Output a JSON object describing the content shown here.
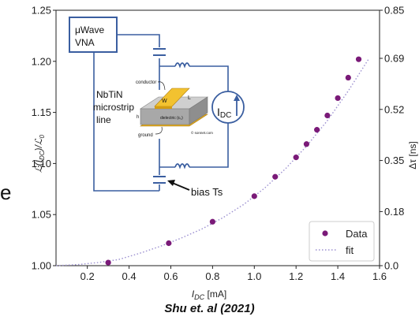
{
  "chart_data": {
    "type": "scatter",
    "xlabel": "I_DC [mA]",
    "ylabel_left": "ℒ(I_DC)/ℒ_0",
    "ylabel_right": "Δτ [ns]",
    "xlim": [
      0.05,
      1.6
    ],
    "ylim_left": [
      1.0,
      1.25
    ],
    "ylim_right": [
      0.0,
      0.85
    ],
    "x_ticks": [
      "0.2",
      "0.4",
      "0.6",
      "0.8",
      "1.0",
      "1.2",
      "1.4",
      "1.6"
    ],
    "y_ticks_left": [
      "1.00",
      "1.05",
      "1.10",
      "1.15",
      "1.20",
      "1.25"
    ],
    "y_ticks_right": [
      "0.0",
      "0.18",
      "0.35",
      "0.52",
      "0.69",
      "0.85"
    ],
    "legend": {
      "placement": "lower-right",
      "entries": [
        "Data",
        "fit"
      ]
    },
    "colors": {
      "data": "#7a1a78",
      "fit": "#9b8fd0"
    },
    "series": [
      {
        "name": "Data",
        "kind": "points",
        "x": [
          0.3,
          0.59,
          0.8,
          1.0,
          1.1,
          1.2,
          1.25,
          1.3,
          1.35,
          1.4,
          1.45,
          1.5
        ],
        "y": [
          1.003,
          1.022,
          1.043,
          1.068,
          1.087,
          1.106,
          1.119,
          1.133,
          1.147,
          1.164,
          1.184,
          1.202
        ]
      },
      {
        "name": "fit",
        "kind": "dotted-line",
        "x": [
          0.05,
          0.15,
          0.25,
          0.35,
          0.45,
          0.55,
          0.65,
          0.75,
          0.85,
          0.95,
          1.05,
          1.15,
          1.25,
          1.35,
          1.45,
          1.55
        ],
        "y": [
          1.0,
          1.001,
          1.003,
          1.006,
          1.012,
          1.019,
          1.027,
          1.036,
          1.047,
          1.06,
          1.076,
          1.095,
          1.117,
          1.142,
          1.171,
          1.203
        ]
      }
    ]
  },
  "inset": {
    "vna_line1": "μWave",
    "vna_line2": "VNA",
    "material_line1": "NbTiN",
    "material_line2": "microstrip",
    "material_line3": "line",
    "conductor": "conductor",
    "dielectric": "dielectric (ε₀)",
    "ground": "ground",
    "w": "W",
    "l": "L",
    "h": "h",
    "credit": "© sonnet.com",
    "idc_symbol": "I",
    "idc_sub": "DC",
    "bias": "bias Ts"
  },
  "caption": "Shu et. al (2021)",
  "stray_char": "e"
}
